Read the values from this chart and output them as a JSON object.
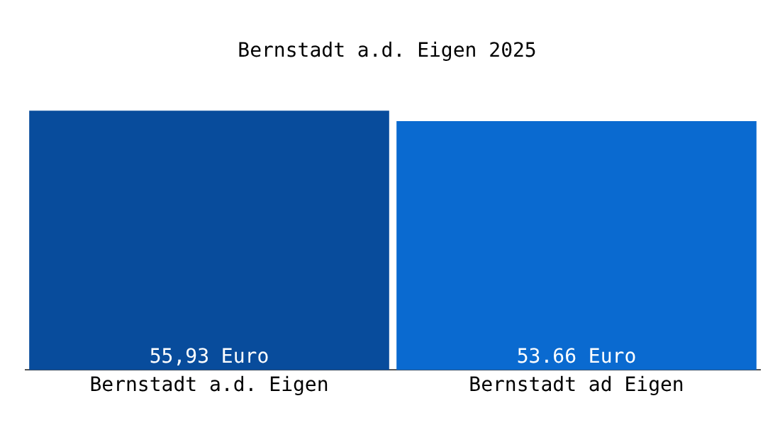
{
  "chart_data": {
    "type": "bar",
    "title": "Bernstadt a.d. Eigen 2025",
    "categories": [
      "Bernstadt a.d. Eigen",
      "Bernstadt ad Eigen"
    ],
    "values": [
      55.93,
      53.66
    ],
    "value_labels": [
      "55,93 Euro",
      "53.66 Euro"
    ],
    "colors": [
      "#084c9c",
      "#0a6ad0"
    ],
    "grid": false,
    "legend": false,
    "tick_labels": "x"
  }
}
